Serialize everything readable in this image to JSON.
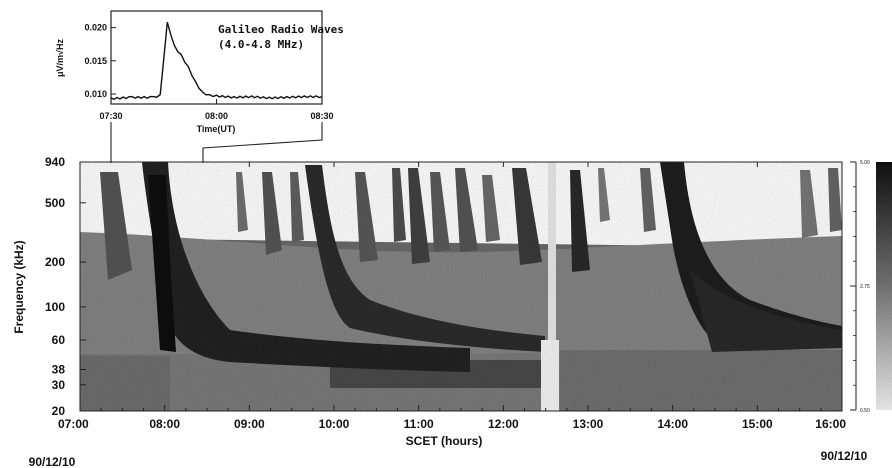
{
  "chart_data": [
    {
      "type": "heatmap",
      "xlabel": "SCET (hours)",
      "ylabel": "Frequency (kHz)",
      "x_ticks": [
        "07:00",
        "08:00",
        "09:00",
        "10:00",
        "11:00",
        "12:00",
        "13:00",
        "14:00",
        "15:00",
        "16:00"
      ],
      "y_ticks": [
        "940",
        "500",
        "200",
        "100",
        "60",
        "38",
        "30",
        "20"
      ],
      "y_scale": "log",
      "ylim": [
        20,
        940
      ],
      "date_start": "90/12/10",
      "date_end": "90/12/10",
      "colorbar_ticks": [
        "5.00",
        "2.75",
        "0.50"
      ]
    },
    {
      "type": "line",
      "title": "Galileo Radio Waves",
      "subtitle": "(4.0-4.8 MHz)",
      "xlabel": "Time(UT)",
      "ylabel": "μV/m√Hz",
      "x_ticks": [
        "07:30",
        "08:00",
        "08:30"
      ],
      "y_ticks": [
        "0.020",
        "0.015",
        "0.010"
      ],
      "ylim": [
        0.0085,
        0.0225
      ],
      "x": [
        "07:30",
        "07:36",
        "07:42",
        "07:44",
        "07:45",
        "07:46",
        "07:47",
        "07:48",
        "07:50",
        "07:52",
        "07:54",
        "07:56",
        "07:58",
        "08:00",
        "08:05",
        "08:10",
        "08:15",
        "08:20",
        "08:25",
        "08:30"
      ],
      "values": [
        0.0093,
        0.0095,
        0.0095,
        0.0098,
        0.0152,
        0.0207,
        0.0188,
        0.0172,
        0.0158,
        0.014,
        0.0118,
        0.0102,
        0.0098,
        0.0097,
        0.0095,
        0.0096,
        0.0094,
        0.0095,
        0.0096,
        0.0096
      ]
    }
  ]
}
